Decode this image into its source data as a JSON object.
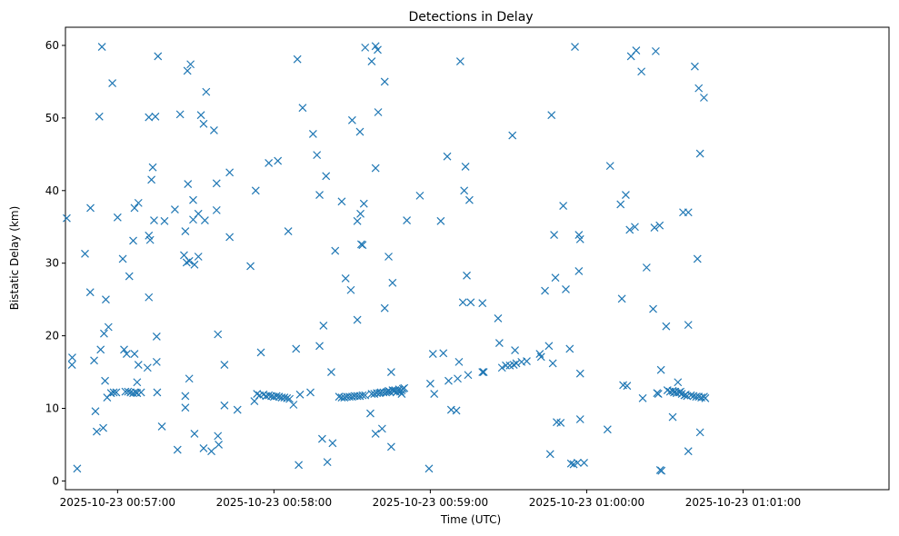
{
  "chart_data": {
    "type": "scatter",
    "title": "Detections in Delay",
    "xlabel": "Time (UTC)",
    "ylabel": "Bistatic Delay (km)",
    "marker": "x",
    "color": "#1f77b4",
    "grid": false,
    "x_unit": "seconds",
    "x_ticks": [
      {
        "value": 3420,
        "label": "2025-10-23 00:57:00"
      },
      {
        "value": 3480,
        "label": "2025-10-23 00:58:00"
      },
      {
        "value": 3540,
        "label": "2025-10-23 00:59:00"
      },
      {
        "value": 3600,
        "label": "2025-10-23 01:00:00"
      },
      {
        "value": 3660,
        "label": "2025-10-23 01:01:00"
      }
    ],
    "y_ticks": [
      0,
      10,
      20,
      30,
      40,
      50,
      60
    ],
    "xlim": [
      3400,
      3716
    ],
    "ylim": [
      -1.2,
      62.5
    ],
    "points": [
      [
        3400.5,
        36.2
      ],
      [
        3402.5,
        16.0
      ],
      [
        3402.6,
        17.0
      ],
      [
        3404.5,
        1.7
      ],
      [
        3407.5,
        31.3
      ],
      [
        3409.5,
        26.0
      ],
      [
        3409.6,
        37.6
      ],
      [
        3411.0,
        16.6
      ],
      [
        3411.5,
        9.6
      ],
      [
        3412.0,
        6.8
      ],
      [
        3413.0,
        50.2
      ],
      [
        3413.5,
        18.1
      ],
      [
        3414.0,
        59.8
      ],
      [
        3414.5,
        7.3
      ],
      [
        3414.8,
        20.3
      ],
      [
        3415.2,
        13.8
      ],
      [
        3415.5,
        25.0
      ],
      [
        3416.0,
        11.5
      ],
      [
        3416.5,
        21.2
      ],
      [
        3417.5,
        12.1
      ],
      [
        3418.0,
        54.8
      ],
      [
        3418.5,
        12.2
      ],
      [
        3419.5,
        12.2
      ],
      [
        3420.0,
        36.3
      ],
      [
        3422.0,
        30.6
      ],
      [
        3422.5,
        18.1
      ],
      [
        3423.0,
        12.3
      ],
      [
        3423.5,
        17.5
      ],
      [
        3424.0,
        12.3
      ],
      [
        3424.5,
        28.2
      ],
      [
        3425.0,
        12.2
      ],
      [
        3426.0,
        33.1
      ],
      [
        3426.0,
        12.1
      ],
      [
        3426.5,
        17.5
      ],
      [
        3426.5,
        37.6
      ],
      [
        3427.0,
        12.2
      ],
      [
        3427.5,
        13.6
      ],
      [
        3427.5,
        12.1
      ],
      [
        3428.0,
        16.0
      ],
      [
        3428.0,
        38.3
      ],
      [
        3429.0,
        12.2
      ],
      [
        3431.5,
        15.6
      ],
      [
        3432.0,
        50.1
      ],
      [
        3432.0,
        33.8
      ],
      [
        3432.0,
        25.3
      ],
      [
        3432.5,
        33.2
      ],
      [
        3433.0,
        41.5
      ],
      [
        3433.5,
        43.2
      ],
      [
        3434.0,
        35.9
      ],
      [
        3434.5,
        50.2
      ],
      [
        3435.0,
        19.9
      ],
      [
        3435.0,
        16.4
      ],
      [
        3435.2,
        12.2
      ],
      [
        3435.5,
        58.5
      ],
      [
        3437.0,
        7.5
      ],
      [
        3438.0,
        35.8
      ],
      [
        3442.0,
        37.4
      ],
      [
        3443.0,
        4.3
      ],
      [
        3444.0,
        50.5
      ],
      [
        3445.5,
        31.1
      ],
      [
        3446.0,
        34.4
      ],
      [
        3446.0,
        11.7
      ],
      [
        3446.0,
        10.1
      ],
      [
        3446.5,
        30.1
      ],
      [
        3446.8,
        56.5
      ],
      [
        3447.0,
        40.9
      ],
      [
        3447.5,
        30.3
      ],
      [
        3447.5,
        14.1
      ],
      [
        3448.0,
        57.4
      ],
      [
        3449.0,
        38.7
      ],
      [
        3449.0,
        36.0
      ],
      [
        3449.5,
        6.5
      ],
      [
        3449.5,
        29.8
      ],
      [
        3451.0,
        36.8
      ],
      [
        3451.0,
        30.9
      ],
      [
        3452.0,
        50.4
      ],
      [
        3453.0,
        49.2
      ],
      [
        3453.5,
        35.9
      ],
      [
        3454.0,
        53.6
      ],
      [
        3453.0,
        4.5
      ],
      [
        3456.0,
        4.1
      ],
      [
        3457.0,
        48.3
      ],
      [
        3458.0,
        41.0
      ],
      [
        3458.0,
        37.3
      ],
      [
        3458.5,
        20.2
      ],
      [
        3458.5,
        6.2
      ],
      [
        3458.8,
        5.0
      ],
      [
        3461.0,
        10.4
      ],
      [
        3461.0,
        16.0
      ],
      [
        3463.0,
        42.5
      ],
      [
        3463.0,
        33.6
      ],
      [
        3466.0,
        9.8
      ],
      [
        3471.0,
        29.6
      ],
      [
        3472.5,
        11.0
      ],
      [
        3473.0,
        40.0
      ],
      [
        3473.5,
        12.0
      ],
      [
        3474.5,
        11.8
      ],
      [
        3475.0,
        17.7
      ],
      [
        3476.0,
        11.9
      ],
      [
        3477.0,
        11.7
      ],
      [
        3478.0,
        11.8
      ],
      [
        3478.0,
        43.8
      ],
      [
        3479.0,
        11.7
      ],
      [
        3480.0,
        11.6
      ],
      [
        3481.0,
        11.7
      ],
      [
        3481.5,
        44.1
      ],
      [
        3482.0,
        11.6
      ],
      [
        3483.0,
        11.5
      ],
      [
        3484.0,
        11.5
      ],
      [
        3485.0,
        11.4
      ],
      [
        3486.0,
        11.3
      ],
      [
        3485.5,
        34.4
      ],
      [
        3487.5,
        10.5
      ],
      [
        3488.5,
        18.2
      ],
      [
        3489.0,
        58.1
      ],
      [
        3489.5,
        2.2
      ],
      [
        3490.0,
        11.9
      ],
      [
        3491.0,
        51.4
      ],
      [
        3494.0,
        12.2
      ],
      [
        3495.0,
        47.8
      ],
      [
        3496.5,
        44.9
      ],
      [
        3497.5,
        39.4
      ],
      [
        3497.5,
        18.6
      ],
      [
        3498.5,
        5.8
      ],
      [
        3499.0,
        21.4
      ],
      [
        3500.0,
        42.0
      ],
      [
        3500.5,
        2.6
      ],
      [
        3502.0,
        15.0
      ],
      [
        3502.5,
        5.2
      ],
      [
        3503.5,
        31.7
      ],
      [
        3505.0,
        11.6
      ],
      [
        3506.0,
        38.5
      ],
      [
        3506.0,
        11.5
      ],
      [
        3507.0,
        11.5
      ],
      [
        3507.5,
        27.9
      ],
      [
        3508.0,
        11.6
      ],
      [
        3509.0,
        11.6
      ],
      [
        3509.5,
        26.3
      ],
      [
        3510.0,
        49.7
      ],
      [
        3510.0,
        11.6
      ],
      [
        3511.0,
        11.7
      ],
      [
        3512.0,
        11.7
      ],
      [
        3512.0,
        22.2
      ],
      [
        3512.0,
        35.8
      ],
      [
        3513.0,
        11.7
      ],
      [
        3513.0,
        48.1
      ],
      [
        3513.2,
        36.8
      ],
      [
        3513.5,
        32.6
      ],
      [
        3514.0,
        11.8
      ],
      [
        3514.0,
        32.5
      ],
      [
        3514.5,
        38.2
      ],
      [
        3515.0,
        11.8
      ],
      [
        3515.0,
        59.7
      ],
      [
        3517.0,
        9.3
      ],
      [
        3517.5,
        12.0
      ],
      [
        3517.5,
        57.8
      ],
      [
        3518.5,
        12.0
      ],
      [
        3519.0,
        59.9
      ],
      [
        3519.0,
        43.1
      ],
      [
        3519.0,
        6.5
      ],
      [
        3519.5,
        12.1
      ],
      [
        3519.8,
        59.4
      ],
      [
        3520.0,
        50.8
      ],
      [
        3520.5,
        12.1
      ],
      [
        3521.0,
        12.2
      ],
      [
        3521.5,
        7.2
      ],
      [
        3522.0,
        12.2
      ],
      [
        3522.5,
        23.8
      ],
      [
        3522.5,
        55.0
      ],
      [
        3523.0,
        12.2
      ],
      [
        3523.5,
        12.3
      ],
      [
        3524.0,
        30.9
      ],
      [
        3524.0,
        12.4
      ],
      [
        3524.5,
        12.3
      ],
      [
        3525.0,
        15.0
      ],
      [
        3525.0,
        4.7
      ],
      [
        3525.5,
        12.5
      ],
      [
        3525.5,
        27.3
      ],
      [
        3526.0,
        12.4
      ],
      [
        3526.5,
        12.5
      ],
      [
        3527.0,
        12.2
      ],
      [
        3527.5,
        12.4
      ],
      [
        3528.0,
        12.6
      ],
      [
        3528.5,
        12.3
      ],
      [
        3529.0,
        12.5
      ],
      [
        3529.0,
        12.0
      ],
      [
        3529.5,
        12.7
      ],
      [
        3530.0,
        12.8
      ],
      [
        3531.0,
        35.9
      ],
      [
        3536.0,
        39.3
      ],
      [
        3539.5,
        1.7
      ],
      [
        3540.0,
        13.4
      ],
      [
        3541.0,
        17.5
      ],
      [
        3541.5,
        12.0
      ],
      [
        3544.0,
        35.8
      ],
      [
        3545.0,
        17.6
      ],
      [
        3546.5,
        44.7
      ],
      [
        3547.0,
        13.8
      ],
      [
        3548.0,
        9.8
      ],
      [
        3550.0,
        9.7
      ],
      [
        3550.5,
        14.1
      ],
      [
        3551.0,
        16.4
      ],
      [
        3551.5,
        57.8
      ],
      [
        3552.5,
        24.6
      ],
      [
        3553.0,
        40.0
      ],
      [
        3553.5,
        43.3
      ],
      [
        3554.0,
        28.3
      ],
      [
        3554.5,
        14.6
      ],
      [
        3555.0,
        38.7
      ],
      [
        3555.5,
        24.6
      ],
      [
        3560.0,
        24.5
      ],
      [
        3560.0,
        15.0
      ],
      [
        3560.5,
        15.0
      ],
      [
        3566.0,
        22.4
      ],
      [
        3566.5,
        19.0
      ],
      [
        3567.5,
        15.6
      ],
      [
        3569.0,
        15.9
      ],
      [
        3570.5,
        15.9
      ],
      [
        3571.5,
        47.6
      ],
      [
        3572.0,
        16.0
      ],
      [
        3572.5,
        18.0
      ],
      [
        3573.0,
        16.2
      ],
      [
        3575.0,
        16.4
      ],
      [
        3577.0,
        16.5
      ],
      [
        3582.0,
        17.5
      ],
      [
        3582.5,
        17.1
      ],
      [
        3584.0,
        26.2
      ],
      [
        3585.5,
        18.6
      ],
      [
        3586.0,
        3.7
      ],
      [
        3586.5,
        50.4
      ],
      [
        3587.0,
        16.2
      ],
      [
        3587.5,
        33.9
      ],
      [
        3588.0,
        28.0
      ],
      [
        3588.5,
        8.1
      ],
      [
        3590.0,
        8.0
      ],
      [
        3591.0,
        37.9
      ],
      [
        3592.0,
        26.4
      ],
      [
        3593.5,
        18.2
      ],
      [
        3594.0,
        2.4
      ],
      [
        3595.0,
        2.3
      ],
      [
        3595.5,
        59.8
      ],
      [
        3596.5,
        2.5
      ],
      [
        3597.0,
        33.9
      ],
      [
        3597.0,
        28.9
      ],
      [
        3597.5,
        14.8
      ],
      [
        3597.5,
        33.3
      ],
      [
        3597.5,
        8.5
      ],
      [
        3599.0,
        2.5
      ],
      [
        3608.0,
        7.1
      ],
      [
        3609.0,
        43.4
      ],
      [
        3613.0,
        38.1
      ],
      [
        3613.5,
        25.1
      ],
      [
        3614.0,
        13.2
      ],
      [
        3615.0,
        39.4
      ],
      [
        3615.5,
        13.1
      ],
      [
        3616.5,
        34.6
      ],
      [
        3617.0,
        58.5
      ],
      [
        3618.5,
        35.0
      ],
      [
        3619.0,
        59.3
      ],
      [
        3621.0,
        56.4
      ],
      [
        3621.5,
        11.4
      ],
      [
        3623.0,
        29.4
      ],
      [
        3625.5,
        23.7
      ],
      [
        3626.0,
        34.9
      ],
      [
        3626.5,
        59.2
      ],
      [
        3627.0,
        12.1
      ],
      [
        3627.5,
        12.0
      ],
      [
        3628.0,
        35.2
      ],
      [
        3628.5,
        15.3
      ],
      [
        3628.2,
        1.5
      ],
      [
        3628.7,
        1.4
      ],
      [
        3630.5,
        21.3
      ],
      [
        3631.0,
        12.5
      ],
      [
        3632.0,
        12.3
      ],
      [
        3633.0,
        8.8
      ],
      [
        3633.0,
        12.4
      ],
      [
        3633.5,
        12.2
      ],
      [
        3634.0,
        12.3
      ],
      [
        3634.5,
        12.1
      ],
      [
        3635.0,
        13.6
      ],
      [
        3635.5,
        12.2
      ],
      [
        3636.0,
        12.3
      ],
      [
        3636.5,
        12.0
      ],
      [
        3637.0,
        37.0
      ],
      [
        3637.5,
        11.8
      ],
      [
        3638.0,
        11.9
      ],
      [
        3638.5,
        11.7
      ],
      [
        3639.0,
        21.5
      ],
      [
        3639.0,
        4.1
      ],
      [
        3639.0,
        37.0
      ],
      [
        3640.0,
        11.8
      ],
      [
        3641.0,
        11.7
      ],
      [
        3641.5,
        57.1
      ],
      [
        3642.0,
        11.6
      ],
      [
        3642.5,
        30.6
      ],
      [
        3643.0,
        54.1
      ],
      [
        3643.0,
        11.6
      ],
      [
        3643.5,
        45.1
      ],
      [
        3643.5,
        6.7
      ],
      [
        3644.0,
        11.5
      ],
      [
        3645.0,
        11.6
      ],
      [
        3645.0,
        52.8
      ],
      [
        3645.5,
        11.4
      ]
    ]
  }
}
